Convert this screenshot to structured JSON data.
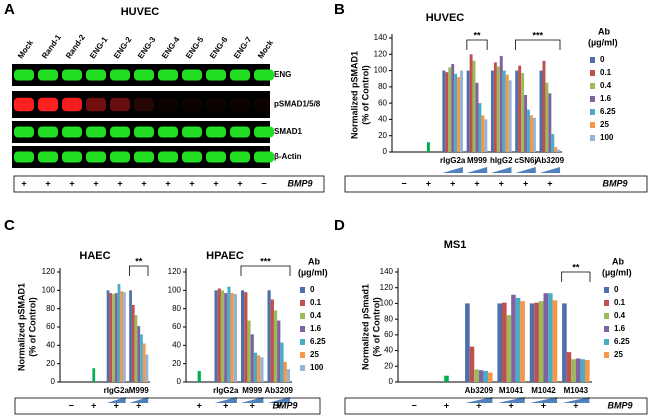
{
  "panels": [
    "A",
    "B",
    "C",
    "D"
  ],
  "blot": {
    "title": "HUVEC",
    "lanes": [
      "Mock",
      "Rand-1",
      "Rand-2",
      "ENG-1",
      "ENG-2",
      "ENG-3",
      "ENG-4",
      "ENG-5",
      "ENG-6",
      "ENG-7",
      "Mock"
    ],
    "bands": [
      "ENG",
      "pSMAD1/5/8",
      "SMAD1",
      "β-Actin"
    ],
    "bmp9": [
      "+",
      "+",
      "+",
      "+",
      "+",
      "+",
      "+",
      "+",
      "+",
      "+",
      "−"
    ],
    "bmp9_label": "BMP9"
  },
  "chart_data": [
    {
      "type": "bar",
      "title": "HUVEC",
      "y_label": [
        "Normalized pSMAD1",
        "(% of Control)"
      ],
      "legend_title": [
        "Ab",
        "(µg/ml)"
      ],
      "categories": [
        null,
        null,
        "rIgG2a",
        "M999",
        "hIgG2",
        "cSN6j",
        "Ab3209"
      ],
      "bmp9": [
        "−",
        "+",
        "+",
        "+",
        "+",
        "+",
        "+"
      ],
      "bmp9_label": "BMP9",
      "ylim": [
        0,
        140
      ],
      "yticks": [
        0,
        20,
        40,
        60,
        80,
        100,
        120,
        140
      ],
      "annotations": [
        "**",
        "***"
      ],
      "series": [
        {
          "color": "#00b050",
          "values": [
            null,
            12,
            null,
            null,
            null,
            null,
            null
          ]
        },
        {
          "name": "0",
          "color": "#4f6fa8",
          "values": [
            null,
            null,
            100,
            100,
            100,
            100,
            100
          ]
        },
        {
          "name": "0.1",
          "color": "#c0504d",
          "values": [
            null,
            null,
            98,
            120,
            110,
            106,
            112
          ]
        },
        {
          "name": "0.4",
          "color": "#9bbb59",
          "values": [
            null,
            null,
            104,
            112,
            105,
            97,
            85
          ]
        },
        {
          "name": "1.6",
          "color": "#7f63a0",
          "values": [
            null,
            null,
            108,
            85,
            118,
            70,
            72
          ]
        },
        {
          "name": "6.25",
          "color": "#4bacc6",
          "values": [
            null,
            null,
            96,
            60,
            100,
            52,
            22
          ]
        },
        {
          "name": "25",
          "color": "#f79646",
          "values": [
            null,
            null,
            92,
            45,
            95,
            45,
            6
          ]
        },
        {
          "name": "100",
          "color": "#95b3d7",
          "values": [
            null,
            null,
            100,
            40,
            88,
            42,
            3
          ]
        }
      ]
    },
    {
      "type": "bar",
      "title": "HAEC",
      "y_label": [
        "Normalized pSMAD1",
        "(% of Control)"
      ],
      "categories": [
        null,
        null,
        "rIgG2a",
        "M999"
      ],
      "bmp9": [
        "−",
        "+",
        "+",
        "+"
      ],
      "ylim": [
        0,
        120
      ],
      "yticks": [
        0,
        20,
        40,
        60,
        80,
        100,
        120
      ],
      "annotations": [
        "**"
      ],
      "series": [
        {
          "color": "#00b050",
          "values": [
            null,
            15,
            null,
            null
          ]
        },
        {
          "color": "#4f6fa8",
          "values": [
            null,
            null,
            100,
            100
          ]
        },
        {
          "color": "#c0504d",
          "values": [
            null,
            null,
            97,
            84
          ]
        },
        {
          "color": "#9bbb59",
          "values": [
            null,
            null,
            96,
            73
          ]
        },
        {
          "color": "#7f63a0",
          "values": [
            null,
            null,
            97,
            61
          ]
        },
        {
          "color": "#4bacc6",
          "values": [
            null,
            null,
            107,
            52
          ]
        },
        {
          "color": "#f79646",
          "values": [
            null,
            null,
            99,
            42
          ]
        },
        {
          "color": "#95b3d7",
          "values": [
            null,
            null,
            98,
            30
          ]
        }
      ]
    },
    {
      "type": "bar",
      "title": "HPAEC",
      "legend_title": [
        "Ab",
        "(µg/ml)"
      ],
      "categories": [
        null,
        "rIgG2a",
        "M999",
        "Ab3209"
      ],
      "bmp9": [
        "+",
        "+",
        "+",
        "+"
      ],
      "bmp9_label": "BMP9",
      "ylim": [
        0,
        120
      ],
      "yticks": [
        0,
        20,
        40,
        60,
        80,
        100,
        120
      ],
      "annotations": [
        "***"
      ],
      "series": [
        {
          "color": "#00b050",
          "values": [
            12,
            null,
            null,
            null
          ]
        },
        {
          "name": "0",
          "color": "#4f6fa8",
          "values": [
            null,
            100,
            100,
            100
          ]
        },
        {
          "name": "0.1",
          "color": "#c0504d",
          "values": [
            null,
            102,
            98,
            90
          ]
        },
        {
          "name": "0.4",
          "color": "#9bbb59",
          "values": [
            null,
            100,
            67,
            78
          ]
        },
        {
          "name": "1.6",
          "color": "#7f63a0",
          "values": [
            null,
            97,
            52,
            67
          ]
        },
        {
          "name": "6.25",
          "color": "#4bacc6",
          "values": [
            null,
            104,
            32,
            43
          ]
        },
        {
          "name": "25",
          "color": "#f79646",
          "values": [
            null,
            97,
            29,
            22
          ]
        },
        {
          "name": "100",
          "color": "#95b3d7",
          "values": [
            null,
            96,
            27,
            14
          ]
        }
      ]
    },
    {
      "type": "bar",
      "title": "MS1",
      "y_label": [
        "Normalized pSmad1",
        "(% of Control)"
      ],
      "legend_title": [
        "Ab",
        "(µg/ml)"
      ],
      "categories": [
        null,
        null,
        "Ab3209",
        "M1041",
        "M1042",
        "M1043"
      ],
      "bmp9": [
        "−",
        "+",
        "+",
        "+",
        "+",
        "+"
      ],
      "bmp9_label": "BMP9",
      "ylim": [
        0,
        140
      ],
      "yticks": [
        0,
        20,
        40,
        60,
        80,
        100,
        120,
        140
      ],
      "annotations": [
        "**"
      ],
      "series": [
        {
          "color": "#00b050",
          "values": [
            null,
            8,
            null,
            null,
            null,
            null
          ]
        },
        {
          "name": "0",
          "color": "#4f6fa8",
          "values": [
            null,
            null,
            100,
            100,
            100,
            100
          ]
        },
        {
          "name": "0.1",
          "color": "#c0504d",
          "values": [
            null,
            null,
            45,
            101,
            101,
            38
          ]
        },
        {
          "name": "0.4",
          "color": "#9bbb59",
          "values": [
            null,
            null,
            16,
            85,
            103,
            29
          ]
        },
        {
          "name": "1.6",
          "color": "#7f63a0",
          "values": [
            null,
            null,
            15,
            111,
            113,
            30
          ]
        },
        {
          "name": "6.25",
          "color": "#4bacc6",
          "values": [
            null,
            null,
            14,
            107,
            113,
            29
          ]
        },
        {
          "name": "25",
          "color": "#f79646",
          "values": [
            null,
            null,
            12,
            103,
            104,
            28
          ]
        }
      ]
    }
  ]
}
